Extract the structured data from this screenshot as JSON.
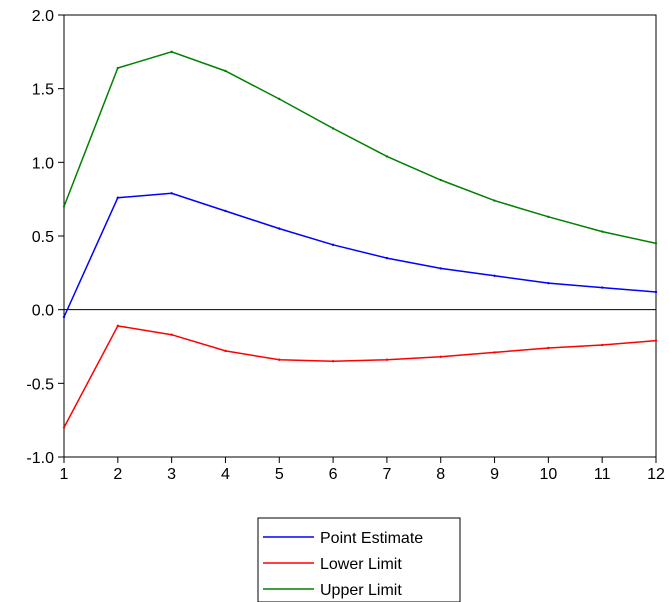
{
  "chart_data": {
    "type": "line",
    "title": "",
    "xlabel": "",
    "ylabel": "",
    "x": [
      1,
      2,
      3,
      4,
      5,
      6,
      7,
      8,
      9,
      10,
      11,
      12
    ],
    "xlim": [
      1,
      12
    ],
    "ylim": [
      -1.0,
      2.0
    ],
    "y_ticks": [
      2.0,
      1.5,
      1.0,
      0.5,
      0.0,
      -0.5,
      -1.0
    ],
    "y_tick_labels": [
      "2.0",
      "1.5",
      "1.0",
      "0.5",
      "0.0",
      "-0.5",
      "-1.0"
    ],
    "x_tick_labels": [
      "1",
      "2",
      "3",
      "4",
      "5",
      "6",
      "7",
      "8",
      "9",
      "10",
      "11",
      "12"
    ],
    "zero_line": true,
    "grid": false,
    "legend_position": "bottom-center",
    "series": [
      {
        "name": "Point Estimate",
        "color": "#0000ff",
        "values": [
          -0.05,
          0.76,
          0.79,
          0.67,
          0.55,
          0.44,
          0.35,
          0.28,
          0.23,
          0.18,
          0.15,
          0.12
        ]
      },
      {
        "name": "Lower Limit",
        "color": "#ff0000",
        "values": [
          -0.8,
          -0.11,
          -0.17,
          -0.28,
          -0.34,
          -0.35,
          -0.34,
          -0.32,
          -0.29,
          -0.26,
          -0.24,
          -0.21
        ]
      },
      {
        "name": "Upper Limit",
        "color": "#008000",
        "values": [
          0.7,
          1.64,
          1.75,
          1.62,
          1.43,
          1.23,
          1.04,
          0.88,
          0.74,
          0.63,
          0.53,
          0.45
        ]
      }
    ]
  }
}
